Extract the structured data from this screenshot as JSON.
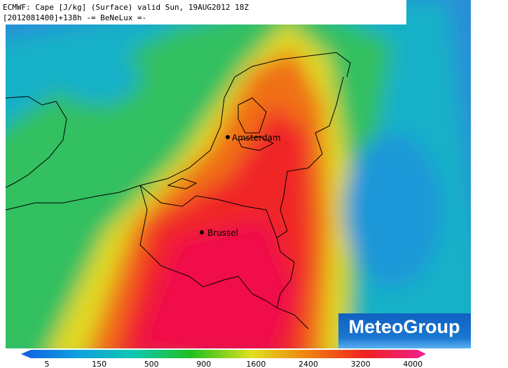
{
  "header": {
    "line1": "ECMWF: Cape [J/kg] (Surface) valid Sun, 19AUG2012 18Z",
    "line2": "[2012081400]+138h -= BeNeLux =-"
  },
  "cities": [
    {
      "name": "Amsterdam"
    },
    {
      "name": "Brussel"
    }
  ],
  "legend": {
    "ticks": [
      5,
      150,
      500,
      900,
      1600,
      2400,
      3200,
      4000
    ]
  },
  "logo": {
    "text": "MeteoGroup"
  }
}
